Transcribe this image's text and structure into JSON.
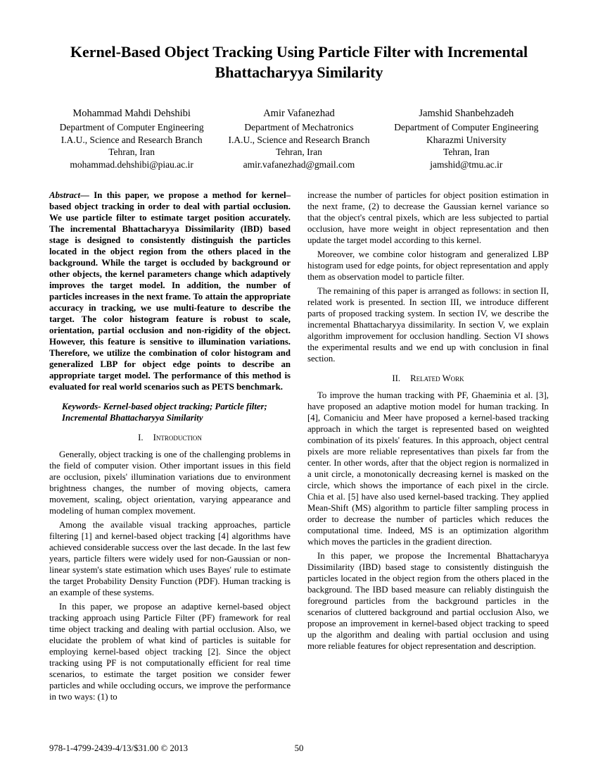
{
  "title": "Kernel-Based Object Tracking Using Particle Filter with Incremental Bhattacharyya Similarity",
  "authors": [
    {
      "name": "Mohammad Mahdi Dehshibi",
      "dept": "Department of Computer Engineering",
      "inst": "I.A.U., Science and Research Branch",
      "loc": "Tehran, Iran",
      "email": "mohammad.dehshibi@piau.ac.ir"
    },
    {
      "name": "Amir Vafanezhad",
      "dept": "Department of Mechatronics",
      "inst": "I.A.U., Science and Research Branch",
      "loc": "Tehran, Iran",
      "email": "amir.vafanezhad@gmail.com"
    },
    {
      "name": "Jamshid Shanbehzadeh",
      "dept": "Department of Computer Engineering",
      "inst": "Kharazmi University",
      "loc": "Tehran, Iran",
      "email": "jamshid@tmu.ac.ir"
    }
  ],
  "abstract_label": "Abstract—",
  "abstract": "In this paper, we propose a method for kernel–based object tracking in order to deal with partial occlusion. We use particle filter to estimate target position accurately. The incremental Bhattacharyya Dissimilarity (IBD) based stage is designed to consistently distinguish the particles located in the object region from the others placed in the background. While the target is occluded by background or other objects, the kernel parameters change which adaptively improves the target model. In addition, the number of particles increases in the next frame. To attain the appropriate accuracy in tracking, we use multi-feature to describe the target. The color histogram feature is robust to scale, orientation, partial occlusion and non-rigidity of the object. However, this feature is sensitive to illumination variations. Therefore, we utilize the combination of color histogram and generalized LBP for object edge points to describe an appropriate target model. The performance of this method is evaluated for real world scenarios such as PETS benchmark.",
  "keywords": "Keywords- Kernel-based object tracking; Particle filter; Incremental Bhattacharyya Similarity",
  "sections": [
    {
      "num": "I.",
      "title": "Introduction"
    },
    {
      "num": "II.",
      "title": "Related Work"
    }
  ],
  "intro": [
    "Generally, object tracking is one of the challenging problems in the field of computer vision. Other important issues in this field are occlusion, pixels' illumination variations due to environment brightness changes, the number of moving objects, camera movement, scaling, object orientation, varying appearance and modeling of human complex movement.",
    "Among the available visual tracking approaches, particle filtering [1] and kernel-based object tracking [4] algorithms have achieved considerable success over the last decade. In the last few years, particle filters were widely used for non-Gaussian or non-linear system's state estimation which uses Bayes' rule to estimate the target Probability Density Function (PDF). Human tracking is an example of these systems.",
    "In this paper, we propose an adaptive kernel-based object tracking approach using Particle Filter (PF) framework for real time object tracking and dealing with partial occlusion. Also, we elucidate the problem of what kind of particles is suitable for employing kernel-based object tracking [2]. Since the object tracking using PF is not computationally efficient for real time scenarios, to estimate the target position we consider fewer particles and while occluding occurs, we improve the performance in two ways: (1) to"
  ],
  "right_top": [
    "increase the number of particles for object position estimation in the next frame, (2) to decrease the Gaussian kernel variance so that the object's central pixels, which are less subjected to partial occlusion, have more weight in object representation and then update the target model according to this kernel.",
    "Moreover, we combine color histogram and generalized LBP histogram used for edge points, for object representation and apply them as observation model to particle filter.",
    "The remaining of this paper is arranged as follows: in section II, related work is presented. In section III, we introduce different parts of proposed tracking system. In section IV, we describe the incremental Bhattacharyya dissimilarity. In section V, we explain algorithm improvement for occlusion handling. Section VI shows the experimental results and we end up with conclusion in final section."
  ],
  "related": [
    "To improve the human tracking with PF, Ghaeminia et al. [3], have proposed an adaptive motion model for human tracking. In [4], Comaniciu and Meer have proposed a kernel-based tracking approach in which the target is represented based on weighted combination of its pixels' features. In this approach, object central pixels are more reliable representatives than pixels far from the center. In other words, after that the object region is normalized in a unit circle, a monotonically decreasing kernel is masked on the circle, which shows the importance of each pixel in the circle. Chia et al. [5] have also used kernel-based tracking. They applied Mean-Shift (MS) algorithm to particle filter sampling process in order to decrease the number of particles which reduces the computational time. Indeed, MS is an optimization algorithm which moves the particles in the gradient direction.",
    "In this paper, we propose the Incremental Bhattacharyya Dissimilarity (IBD) based stage to consistently distinguish the particles located in the object region from the others placed in the background. The IBD based measure can reliably distinguish the foreground particles from the background particles in the scenarios of cluttered background and partial occlusion Also, we propose an improvement in kernel-based object tracking to speed up the algorithm and dealing with partial occlusion and using more reliable features for object representation and description."
  ],
  "footer_isbn": "978-1-4799-2439-4/13/$31.00 © 2013",
  "page_number": "50"
}
